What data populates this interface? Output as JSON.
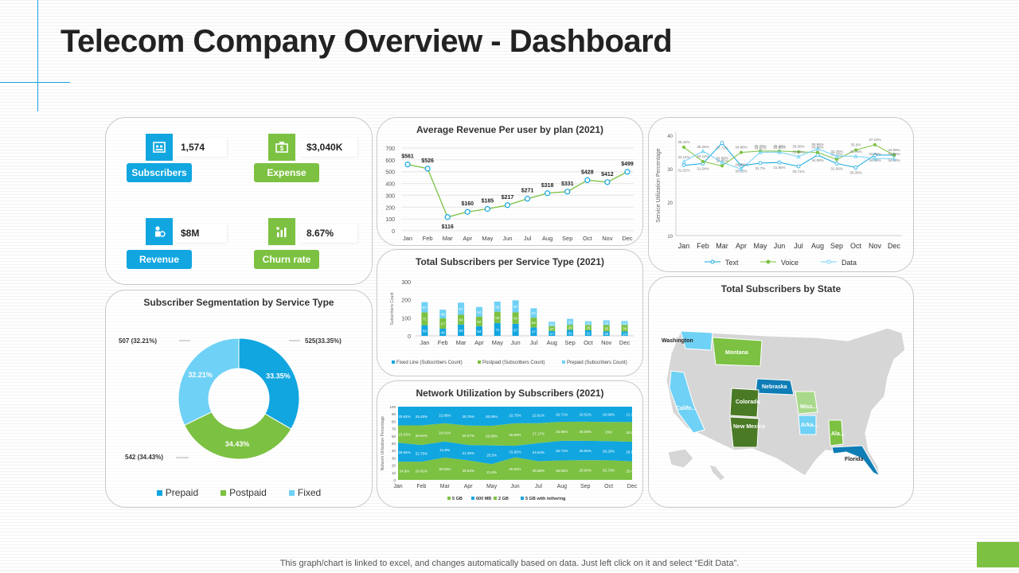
{
  "page": {
    "title": "Telecom Company Overview - Dashboard",
    "footer": "This graph/chart is linked to excel,  and changes automatically based on data. Just left click on it and select “Edit Data”."
  },
  "kpis": [
    {
      "value": "1,574",
      "label": "Subscribers",
      "icon": "subscribers-icon",
      "color": "#11a6e0"
    },
    {
      "value": "$3,040K",
      "label": "Expense",
      "icon": "expense-icon",
      "color": "#7cc142"
    },
    {
      "value": "$8M",
      "label": "Revenue",
      "icon": "revenue-icon",
      "color": "#11a6e0"
    },
    {
      "value": "8.67%",
      "label": "Churn rate",
      "icon": "churn-icon",
      "color": "#7cc142"
    }
  ],
  "chart_data": [
    {
      "id": "arpu",
      "type": "line",
      "title": "Average Revenue Per user by plan (2021)",
      "categories": [
        "Jan",
        "Feb",
        "Mar",
        "Apr",
        "May",
        "Jun",
        "Jul",
        "Aug",
        "Sep",
        "Oct",
        "Nov",
        "Dec"
      ],
      "values": [
        561,
        526,
        116,
        160,
        185,
        217,
        271,
        318,
        331,
        428,
        412,
        499
      ],
      "data_labels": [
        "$561",
        "$526",
        "$116",
        "$160",
        "$185",
        "$217",
        "$271",
        "$318",
        "$331",
        "$428",
        "$412",
        "$499"
      ],
      "yticks": [
        "0",
        "100",
        "200",
        "300",
        "400",
        "500",
        "600",
        "700"
      ],
      "ylim": [
        0,
        700
      ],
      "color": "#7cc142",
      "marker_color": "#11a6e0"
    },
    {
      "id": "utilization",
      "type": "line",
      "title": "",
      "ylabel": "Service Utilization Percentage",
      "categories": [
        "Jan",
        "Feb",
        "Mar",
        "Apr",
        "May",
        "Jun",
        "Jul",
        "Aug",
        "Sep",
        "Oct",
        "Nov",
        "Dec"
      ],
      "ylim": [
        10,
        40
      ],
      "yticks": [
        "10",
        "20",
        "30",
        "40"
      ],
      "series": [
        {
          "name": "Text",
          "color": "#11a6e0",
          "values": [
            31.02,
            31.54,
            37.71,
            30.85,
            31.7,
            31.86,
            30.71,
            34.08,
            31.56,
            30.35,
            34.08,
            34.08
          ]
        },
        {
          "name": "Voice",
          "color": "#7cc142",
          "values": [
            36.44,
            32.14,
            30.85,
            34.88,
            35.26,
            35.26,
            35.06,
            34.88,
            32.76,
            35.6,
            37.16,
            34.08
          ]
        },
        {
          "name": "Data",
          "color": "#6fd1f5",
          "values": [
            32.14,
            35.26,
            31.92,
            29.89,
            34.92,
            34.96,
            33.64,
            35.96,
            33.76,
            33.76,
            33.06,
            33.06
          ]
        }
      ]
    },
    {
      "id": "subscribers-by-type",
      "type": "bar",
      "title": "Total Subscribers per Service Type (2021)",
      "ylabel": "Subscribers Count",
      "categories": [
        "Jan",
        "Feb",
        "Mar",
        "Apr",
        "May",
        "Jun",
        "Jul",
        "Aug",
        "Sep",
        "Oct",
        "Nov",
        "Dec"
      ],
      "ylim": [
        0,
        300
      ],
      "yticks": [
        "0",
        "100",
        "200",
        "300"
      ],
      "series": [
        {
          "name": "Fixed Line (Subscribers Count)",
          "color": "#11a6e0",
          "values": [
            59,
            40,
            63,
            54,
            71,
            67,
            47,
            27,
            33,
            31,
            25,
            24
          ]
        },
        {
          "name": "Postpaid (Subscribers Count)",
          "color": "#7cc142",
          "values": [
            71,
            57,
            54,
            52,
            63,
            63,
            54,
            27,
            28,
            29,
            35,
            36
          ]
        },
        {
          "name": "Prepaid (Subscribers Count)",
          "color": "#6fd1f5",
          "values": [
            57,
            48,
            67,
            54,
            56,
            67,
            52,
            24,
            33,
            21,
            26,
            22
          ]
        }
      ]
    },
    {
      "id": "network-utilization",
      "type": "area",
      "title": "Network Utilization by Subscribers (2021)",
      "ylabel": "Network Utilization Percentage",
      "categories": [
        "Jan",
        "Feb",
        "Mar",
        "Apr",
        "May",
        "Jun",
        "Jul",
        "Aug",
        "Sep",
        "Oct",
        "Dec"
      ],
      "ylim": [
        0,
        100
      ],
      "yticks": [
        "0",
        "10",
        "20",
        "30",
        "40",
        "50",
        "60",
        "70",
        "80",
        "90",
        "100"
      ],
      "series": [
        {
          "name": "5 GB",
          "color": "#7cc142",
          "values": [
            24.91,
            24.91,
            30.53,
            26.63,
            21.6,
            30.84,
            25.58,
            26.63,
            26.84,
            26.73,
            25.46
          ]
        },
        {
          "name": "600 MB",
          "color": "#11a6e0",
          "values": [
            25.94,
            22.75,
            21.9,
            21.05,
            25.5,
            15.82,
            24.64,
            26.71,
            26.55,
            26.29,
            26.58
          ]
        },
        {
          "name": "2 GB",
          "color": "#7cc142",
          "values": [
            23.53,
            26.84,
            24.91,
            26.57,
            26.85,
            30.59,
            27.17,
            25.95,
            26.09,
            26.0,
            26.84
          ]
        },
        {
          "name": "5 GB with tethering",
          "color": "#11a6e0",
          "values": [
            25.62,
            25.45,
            22.66,
            25.75,
            26.05,
            22.75,
            22.61,
            20.71,
            20.52,
            20.98,
            21.12
          ]
        }
      ],
      "data_labels": [
        [
          "24.9%",
          "24.91%",
          "30.53%",
          "26.63%",
          "21.6%",
          "30.84%",
          "25.58%",
          "26.63%",
          "26.84%",
          "26.73%",
          "25.46%"
        ],
        [
          "25.94%",
          "22.75%",
          "21.9%",
          "21.05%",
          "25.5%",
          "15.82%",
          "24.64%",
          "26.71%",
          "26.55%",
          "26.29%",
          "26.58%"
        ],
        [
          "23.53%",
          "26.84%",
          "24.91%",
          "26.57%",
          "26.85%",
          "30.59%",
          "27.17%",
          "25.95%",
          "26.09%",
          "26%",
          "26.84%"
        ],
        [
          "25.62%",
          "25.45%",
          "22.66%",
          "25.75%",
          "26.05%",
          "22.75%",
          "22.61%",
          "20.71%",
          "20.52%",
          "20.98%",
          "21.12%"
        ]
      ]
    },
    {
      "id": "segmentation",
      "type": "pie",
      "title": "Subscriber Segmentation by Service Type",
      "slices": [
        {
          "name": "Prepaid",
          "value": 33.35,
          "label": "33.35%",
          "callout": "525(33.35%)",
          "color": "#11a6e0"
        },
        {
          "name": "Postpaid",
          "value": 34.43,
          "label": "34.43%",
          "callout": "542 (34.43%)",
          "color": "#7cc142"
        },
        {
          "name": "Fixed",
          "value": 32.21,
          "label": "32.21%",
          "callout": "507 (32.21%)",
          "color": "#6fd1f5"
        }
      ]
    }
  ],
  "state_map": {
    "title": "Total Subscribers by State",
    "states": [
      {
        "name": "Washington",
        "color": "#6fd1f5"
      },
      {
        "name": "Montana",
        "color": "#7cc142"
      },
      {
        "name": "Nebraska",
        "color": "#0e7db5"
      },
      {
        "name": "Colorado",
        "color": "#4a7a25"
      },
      {
        "name": "New Mexico",
        "color": "#4a7a25"
      },
      {
        "name": "Califo...",
        "color": "#6fd1f5"
      },
      {
        "name": "Miss...",
        "color": "#a8d98a"
      },
      {
        "name": "Arka...",
        "color": "#6fd1f5"
      },
      {
        "name": "Ala...",
        "color": "#7cc142"
      },
      {
        "name": "Florida",
        "color": "#0e7db5"
      }
    ]
  }
}
